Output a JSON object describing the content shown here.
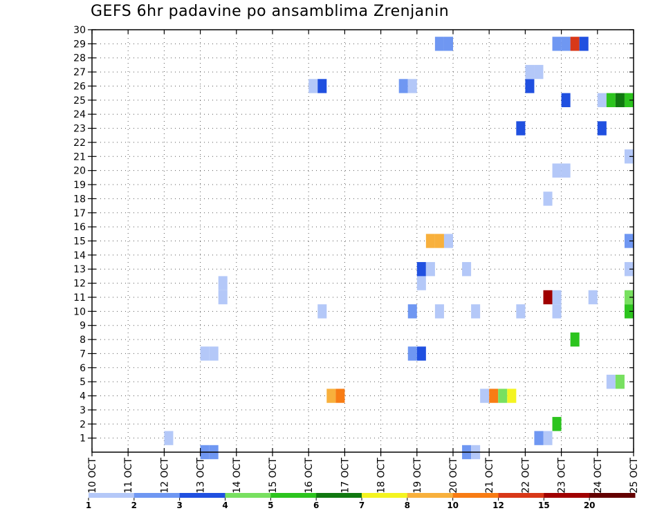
{
  "chart_data": {
    "type": "heatmap",
    "title": "GEFS 6hr padavine po ansamblima Zrenjanin",
    "xlabel": "",
    "ylabel": "",
    "x_ticks": [
      "10 OCT",
      "11 OCT",
      "12 OCT",
      "13 OCT",
      "14 OCT",
      "15 OCT",
      "16 OCT",
      "17 OCT",
      "18 OCT",
      "19 OCT",
      "20 OCT",
      "21 OCT",
      "22 OCT",
      "23 OCT",
      "24 OCT",
      "25 OCT"
    ],
    "x_range_days": [
      10,
      25
    ],
    "y_ticks": [
      "1",
      "2",
      "3",
      "4",
      "5",
      "6",
      "7",
      "8",
      "9",
      "10",
      "11",
      "12",
      "13",
      "14",
      "15",
      "16",
      "17",
      "18",
      "19",
      "20",
      "21",
      "22",
      "23",
      "24",
      "25",
      "26",
      "27",
      "28",
      "29",
      "30"
    ],
    "y_range": [
      0,
      30
    ],
    "grid": true,
    "colorbar": {
      "colors": [
        "#b4c8f8",
        "#6f97f2",
        "#2050e0",
        "#78e060",
        "#2cc41e",
        "#107810",
        "#f4f420",
        "#f8b03c",
        "#f87c14",
        "#d83818",
        "#a00000",
        "#640000"
      ],
      "labels": [
        "1",
        "2",
        "3",
        "4",
        "5",
        "6",
        "7",
        "8",
        "10",
        "12",
        "15",
        "20"
      ]
    },
    "cells": [
      {
        "day": 12.0,
        "member": 1,
        "cat": 0
      },
      {
        "day": 13.0,
        "member": 0,
        "cat": 1
      },
      {
        "day": 13.25,
        "member": 0,
        "cat": 1
      },
      {
        "day": 20.25,
        "member": 0,
        "cat": 1
      },
      {
        "day": 20.5,
        "member": 0,
        "cat": 0
      },
      {
        "day": 22.25,
        "member": 1,
        "cat": 1
      },
      {
        "day": 22.5,
        "member": 1,
        "cat": 0
      },
      {
        "day": 22.75,
        "member": 2,
        "cat": 4
      },
      {
        "day": 16.5,
        "member": 4,
        "cat": 7
      },
      {
        "day": 16.75,
        "member": 4,
        "cat": 8
      },
      {
        "day": 20.75,
        "member": 4,
        "cat": 0
      },
      {
        "day": 21.0,
        "member": 4,
        "cat": 8
      },
      {
        "day": 21.25,
        "member": 4,
        "cat": 3
      },
      {
        "day": 21.5,
        "member": 4,
        "cat": 6
      },
      {
        "day": 24.25,
        "member": 5,
        "cat": 0
      },
      {
        "day": 24.5,
        "member": 5,
        "cat": 3
      },
      {
        "day": 13.0,
        "member": 7,
        "cat": 0
      },
      {
        "day": 13.25,
        "member": 7,
        "cat": 0
      },
      {
        "day": 18.75,
        "member": 7,
        "cat": 1
      },
      {
        "day": 19.0,
        "member": 7,
        "cat": 2
      },
      {
        "day": 23.25,
        "member": 8,
        "cat": 4
      },
      {
        "day": 16.25,
        "member": 10,
        "cat": 0
      },
      {
        "day": 18.75,
        "member": 10,
        "cat": 1
      },
      {
        "day": 19.5,
        "member": 10,
        "cat": 0
      },
      {
        "day": 20.5,
        "member": 10,
        "cat": 0
      },
      {
        "day": 21.75,
        "member": 10,
        "cat": 0
      },
      {
        "day": 22.75,
        "member": 10,
        "cat": 0
      },
      {
        "day": 24.75,
        "member": 10,
        "cat": 4
      },
      {
        "day": 13.5,
        "member": 11,
        "cat": 0
      },
      {
        "day": 22.5,
        "member": 11,
        "cat": 10
      },
      {
        "day": 22.75,
        "member": 11,
        "cat": 0
      },
      {
        "day": 23.75,
        "member": 11,
        "cat": 0
      },
      {
        "day": 24.75,
        "member": 11,
        "cat": 3
      },
      {
        "day": 13.5,
        "member": 12,
        "cat": 0
      },
      {
        "day": 19.0,
        "member": 12,
        "cat": 0
      },
      {
        "day": 19.0,
        "member": 13,
        "cat": 2
      },
      {
        "day": 19.25,
        "member": 13,
        "cat": 0
      },
      {
        "day": 20.25,
        "member": 13,
        "cat": 0
      },
      {
        "day": 24.75,
        "member": 13,
        "cat": 0
      },
      {
        "day": 19.25,
        "member": 15,
        "cat": 7
      },
      {
        "day": 19.5,
        "member": 15,
        "cat": 7
      },
      {
        "day": 19.75,
        "member": 15,
        "cat": 0
      },
      {
        "day": 24.75,
        "member": 15,
        "cat": 1
      },
      {
        "day": 22.5,
        "member": 18,
        "cat": 0
      },
      {
        "day": 22.75,
        "member": 20,
        "cat": 0
      },
      {
        "day": 23.0,
        "member": 20,
        "cat": 0
      },
      {
        "day": 24.75,
        "member": 21,
        "cat": 0
      },
      {
        "day": 21.75,
        "member": 23,
        "cat": 2
      },
      {
        "day": 24.0,
        "member": 23,
        "cat": 2
      },
      {
        "day": 23.0,
        "member": 25,
        "cat": 2
      },
      {
        "day": 24.0,
        "member": 25,
        "cat": 0
      },
      {
        "day": 24.25,
        "member": 25,
        "cat": 4
      },
      {
        "day": 24.5,
        "member": 25,
        "cat": 5
      },
      {
        "day": 24.75,
        "member": 25,
        "cat": 4
      },
      {
        "day": 16.0,
        "member": 26,
        "cat": 0
      },
      {
        "day": 16.25,
        "member": 26,
        "cat": 2
      },
      {
        "day": 18.5,
        "member": 26,
        "cat": 1
      },
      {
        "day": 18.75,
        "member": 26,
        "cat": 0
      },
      {
        "day": 22.0,
        "member": 26,
        "cat": 2
      },
      {
        "day": 22.0,
        "member": 27,
        "cat": 0
      },
      {
        "day": 22.25,
        "member": 27,
        "cat": 0
      },
      {
        "day": 19.5,
        "member": 29,
        "cat": 1
      },
      {
        "day": 19.75,
        "member": 29,
        "cat": 1
      },
      {
        "day": 22.75,
        "member": 29,
        "cat": 1
      },
      {
        "day": 23.0,
        "member": 29,
        "cat": 1
      },
      {
        "day": 23.25,
        "member": 29,
        "cat": 9
      },
      {
        "day": 23.5,
        "member": 29,
        "cat": 2
      }
    ]
  }
}
